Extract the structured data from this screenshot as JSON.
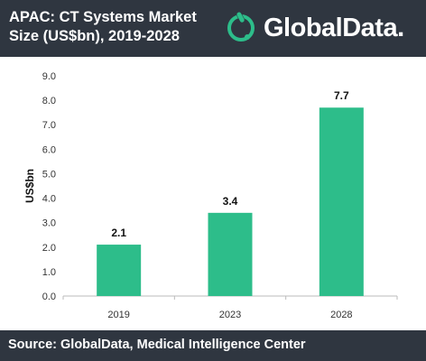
{
  "header": {
    "title_line1": "APAC: CT Systems Market",
    "title_line2": "Size (US$bn), 2019-2028",
    "logo_text": "GlobalData.",
    "logo_icon": "globaldata-logo-icon"
  },
  "footer": {
    "source": "Source: GlobalData, Medical Intelligence Center"
  },
  "colors": {
    "bar": "#2dbd8a",
    "header_bg": "#2f3640",
    "logo_accent": "#2dbd8a"
  },
  "chart_data": {
    "type": "bar",
    "title": "APAC: CT Systems Market Size (US$bn), 2019-2028",
    "xlabel": "",
    "ylabel": "US$bn",
    "categories": [
      "2019",
      "2023",
      "2028"
    ],
    "values": [
      2.1,
      3.4,
      7.7
    ],
    "value_labels": [
      "2.1",
      "3.4",
      "7.7"
    ],
    "ylim": [
      0,
      9
    ],
    "yticks": [
      "0.0",
      "1.0",
      "2.0",
      "3.0",
      "4.0",
      "5.0",
      "6.0",
      "7.0",
      "8.0",
      "9.0"
    ],
    "grid": false,
    "legend": "none"
  }
}
